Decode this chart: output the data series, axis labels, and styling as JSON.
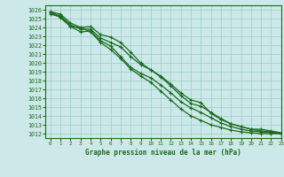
{
  "title": "Graphe pression niveau de la mer (hPa)",
  "x_ticks": [
    0,
    1,
    2,
    3,
    4,
    5,
    6,
    7,
    8,
    9,
    10,
    11,
    12,
    13,
    14,
    15,
    16,
    17,
    18,
    19,
    20,
    21,
    22,
    23
  ],
  "xlim": [
    -0.5,
    23
  ],
  "ylim": [
    1011.5,
    1026.5
  ],
  "y_ticks": [
    1012,
    1013,
    1014,
    1015,
    1016,
    1017,
    1018,
    1019,
    1020,
    1021,
    1022,
    1023,
    1024,
    1025,
    1026
  ],
  "background_color": "#cce8e8",
  "grid_color": "#99cccc",
  "line_color": "#1a6b1a",
  "line_width": 0.9,
  "marker": "+",
  "marker_size": 3,
  "marker_edge_width": 0.8,
  "series": [
    [
      1025.5,
      1025.2,
      1024.1,
      1024.0,
      1024.1,
      1023.2,
      1022.9,
      1022.3,
      1021.2,
      1020.0,
      1019.2,
      1018.5,
      1017.6,
      1016.6,
      1015.8,
      1015.5,
      1014.3,
      1013.6,
      1013.1,
      1012.8,
      1012.5,
      1012.5,
      1012.3,
      1012.1
    ],
    [
      1025.7,
      1025.3,
      1024.3,
      1023.8,
      1023.8,
      1022.8,
      1022.3,
      1021.8,
      1020.7,
      1019.8,
      1019.2,
      1018.4,
      1017.4,
      1016.3,
      1015.4,
      1015.1,
      1014.4,
      1013.7,
      1013.1,
      1012.8,
      1012.5,
      1012.3,
      1012.2,
      1012.0
    ],
    [
      1025.7,
      1025.1,
      1024.1,
      1023.5,
      1023.6,
      1022.5,
      1021.9,
      1020.7,
      1019.5,
      1018.8,
      1018.3,
      1017.5,
      1016.6,
      1015.6,
      1014.9,
      1014.4,
      1013.8,
      1013.2,
      1012.8,
      1012.5,
      1012.3,
      1012.2,
      1012.1,
      1012.0
    ],
    [
      1025.8,
      1025.5,
      1024.5,
      1024.0,
      1023.5,
      1022.3,
      1021.5,
      1020.5,
      1019.3,
      1018.5,
      1017.8,
      1016.8,
      1015.8,
      1014.8,
      1014.0,
      1013.5,
      1013.0,
      1012.7,
      1012.4,
      1012.2,
      1012.1,
      1012.0,
      1012.0,
      1012.0
    ]
  ]
}
